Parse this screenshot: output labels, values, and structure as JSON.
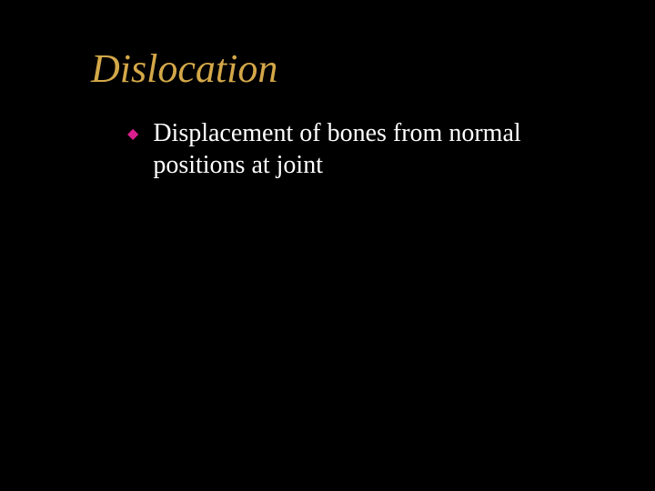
{
  "slide": {
    "title": "Dislocation",
    "title_color": "#d4a849",
    "title_fontsize": 44,
    "title_style": "italic",
    "background_color": "#000000",
    "bullets": [
      {
        "marker": "◆",
        "marker_color": "#d91e8e",
        "text": "Displacement of bones from normal positions at joint",
        "text_color": "#ffffff",
        "text_fontsize": 28
      }
    ]
  }
}
